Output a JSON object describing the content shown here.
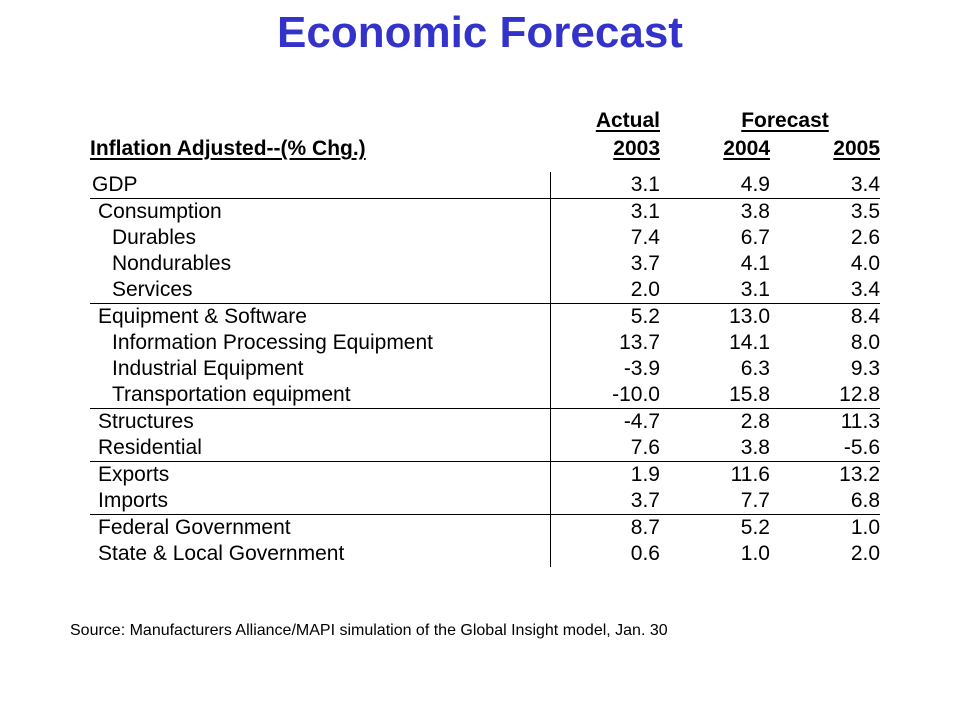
{
  "title": "Economic Forecast",
  "table": {
    "group_headers": {
      "actual": "Actual",
      "forecast": "Forecast"
    },
    "row_header": "Inflation Adjusted--(% Chg.)",
    "years": [
      "2003",
      "2004",
      "2005"
    ],
    "rows": [
      {
        "label": "GDP",
        "level": 0,
        "sep": false,
        "values": [
          "3.1",
          "4.9",
          "3.4"
        ]
      },
      {
        "label": "Consumption",
        "level": 1,
        "sep": true,
        "values": [
          "3.1",
          "3.8",
          "3.5"
        ]
      },
      {
        "label": "Durables",
        "level": 2,
        "sep": false,
        "values": [
          "7.4",
          "6.7",
          "2.6"
        ]
      },
      {
        "label": "Nondurables",
        "level": 2,
        "sep": false,
        "values": [
          "3.7",
          "4.1",
          "4.0"
        ]
      },
      {
        "label": "Services",
        "level": 2,
        "sep": false,
        "values": [
          "2.0",
          "3.1",
          "3.4"
        ]
      },
      {
        "label": "Equipment & Software",
        "level": 1,
        "sep": true,
        "values": [
          "5.2",
          "13.0",
          "8.4"
        ]
      },
      {
        "label": "Information Processing Equipment",
        "level": 2,
        "sep": false,
        "values": [
          "13.7",
          "14.1",
          "8.0"
        ]
      },
      {
        "label": "Industrial Equipment",
        "level": 2,
        "sep": false,
        "values": [
          "-3.9",
          "6.3",
          "9.3"
        ]
      },
      {
        "label": "Transportation equipment",
        "level": 2,
        "sep": false,
        "values": [
          "-10.0",
          "15.8",
          "12.8"
        ]
      },
      {
        "label": "Structures",
        "level": 1,
        "sep": true,
        "values": [
          "-4.7",
          "2.8",
          "11.3"
        ]
      },
      {
        "label": "Residential",
        "level": 1,
        "sep": false,
        "values": [
          "7.6",
          "3.8",
          "-5.6"
        ]
      },
      {
        "label": "Exports",
        "level": 1,
        "sep": true,
        "values": [
          "1.9",
          "11.6",
          "13.2"
        ]
      },
      {
        "label": "Imports",
        "level": 1,
        "sep": false,
        "values": [
          "3.7",
          "7.7",
          "6.8"
        ]
      },
      {
        "label": "Federal Government",
        "level": 1,
        "sep": true,
        "values": [
          "8.7",
          "5.2",
          "1.0"
        ]
      },
      {
        "label": "State & Local Government",
        "level": 1,
        "sep": false,
        "values": [
          "0.6",
          "1.0",
          "2.0"
        ]
      }
    ]
  },
  "source": "Source: Manufacturers Alliance/MAPI simulation of the Global Insight model, Jan. 30",
  "colors": {
    "title": "#3333cc",
    "text": "#000000",
    "background": "#ffffff"
  }
}
